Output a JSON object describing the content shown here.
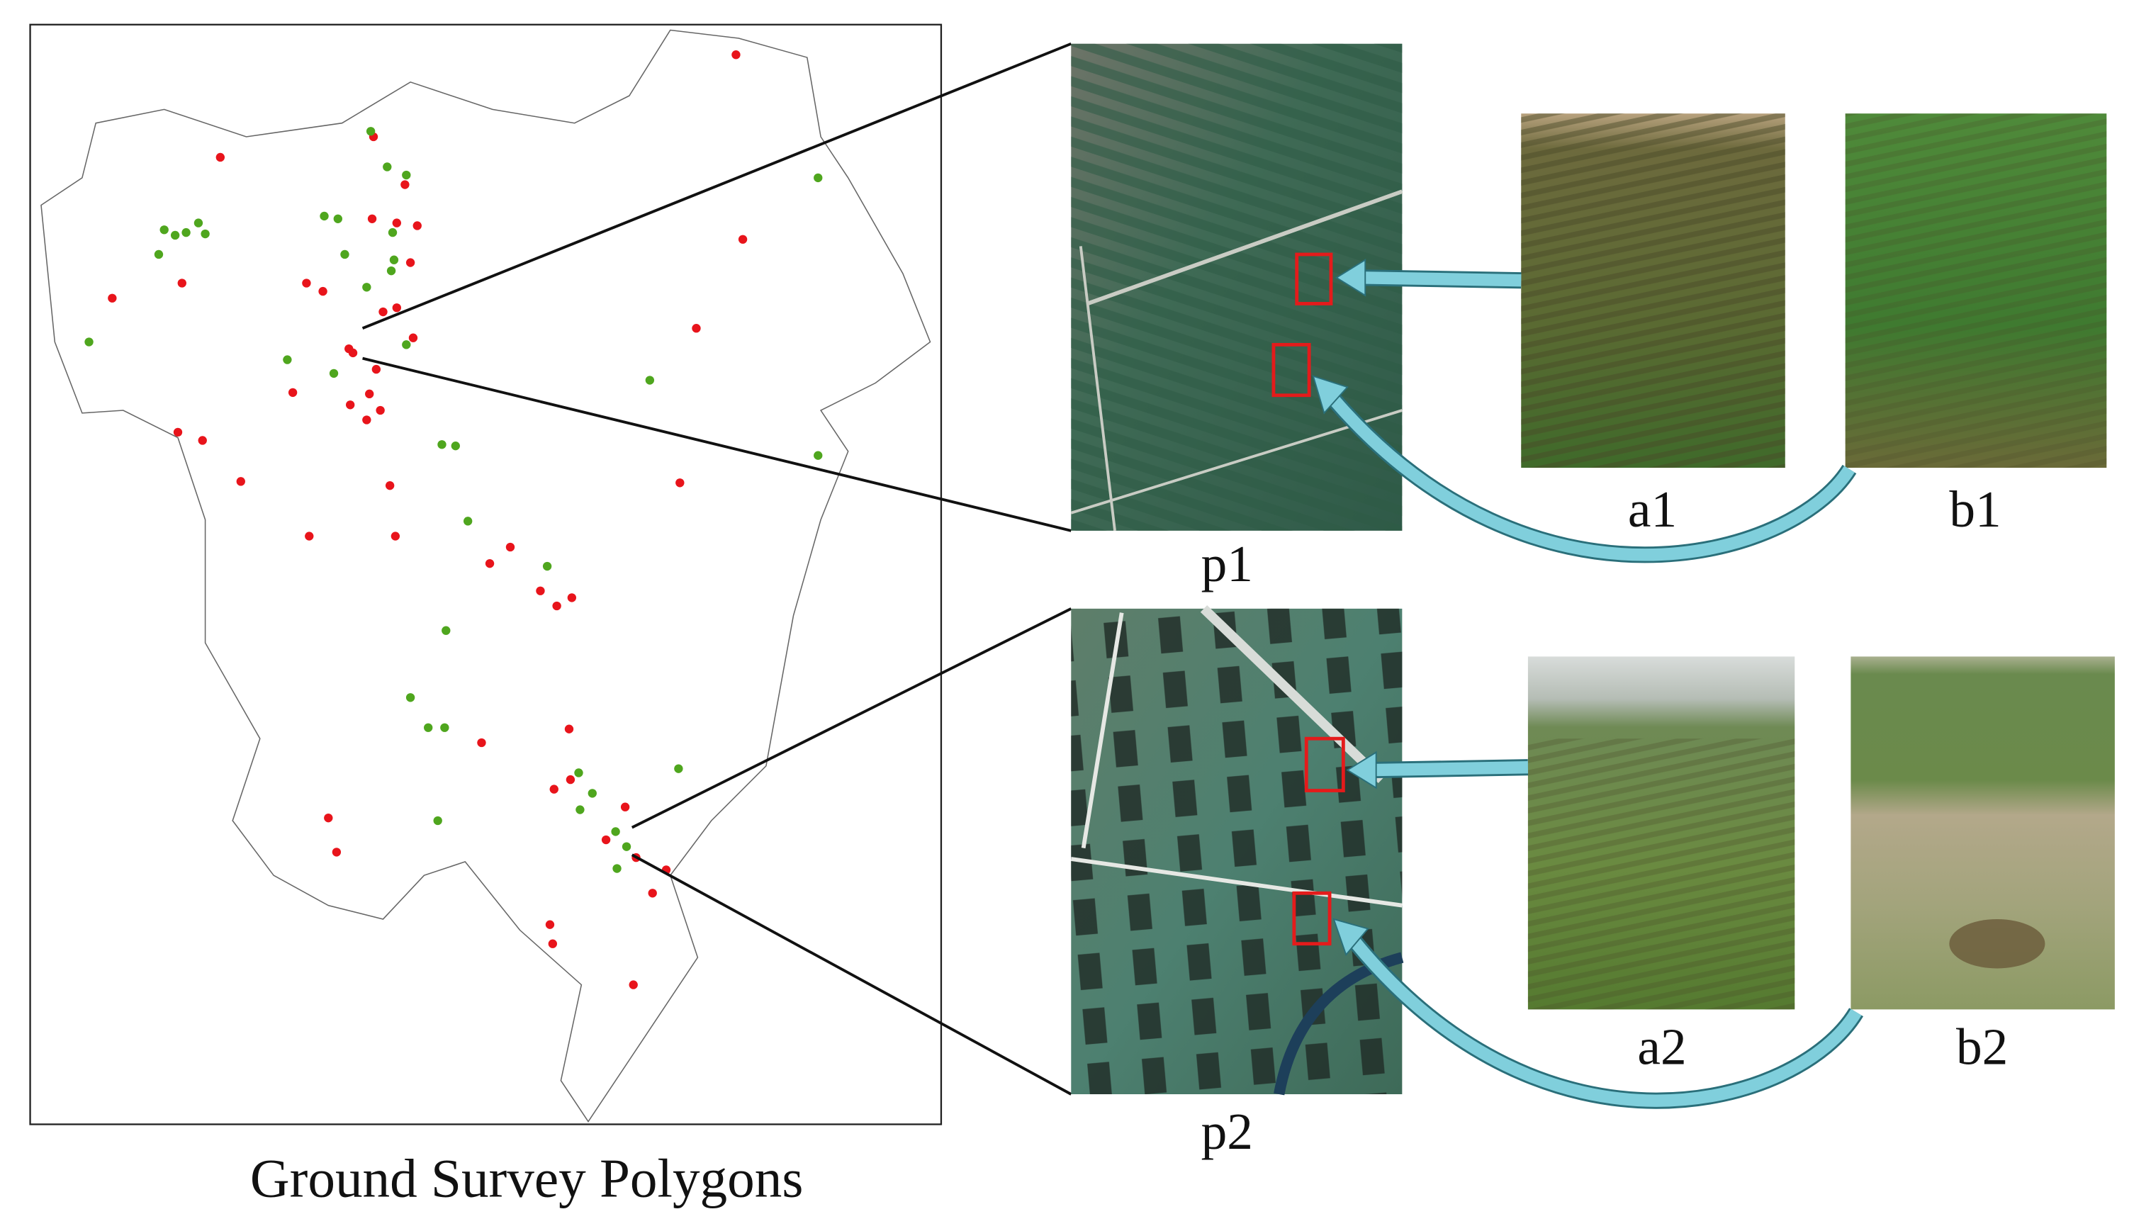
{
  "caption": "Ground Survey Polygons",
  "images": {
    "p1": "p1",
    "p2": "p2",
    "a1": "a1",
    "b1": "b1",
    "a2": "a2",
    "b2": "b2"
  }
}
